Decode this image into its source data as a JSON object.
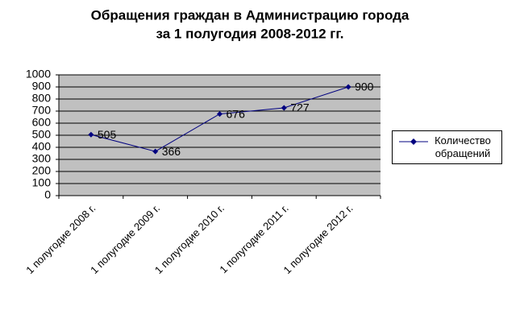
{
  "chart_data": {
    "type": "line",
    "title": [
      "Обращения граждан в Администрацию города",
      "за 1 полугодия 2008-2012 гг."
    ],
    "categories": [
      "1 полугодие  2008 г.",
      "1 полугодие  2009 г.",
      "1 полугодие  2010 г.",
      "1 полугодие  2011 г.",
      "1 полугодие  2012 г."
    ],
    "series": [
      {
        "name": "Количество обращений",
        "color": "#000080",
        "values": [
          505,
          366,
          676,
          727,
          900
        ]
      }
    ],
    "ylim": [
      0,
      1000
    ],
    "yticks": [
      0,
      100,
      200,
      300,
      400,
      500,
      600,
      700,
      800,
      900,
      1000
    ],
    "grid": true,
    "legend": "right"
  }
}
